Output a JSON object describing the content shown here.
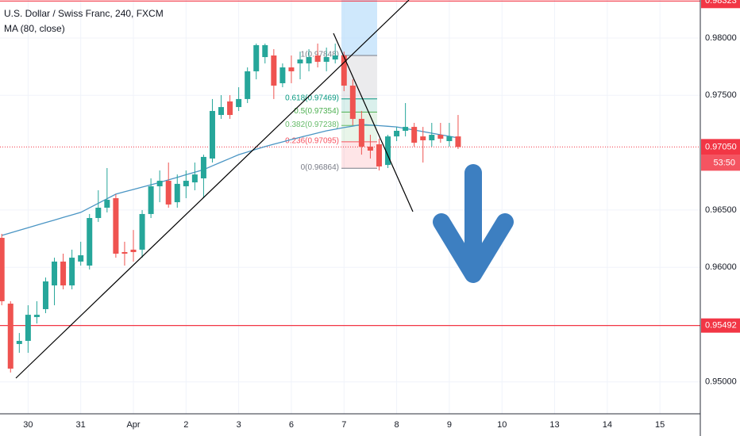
{
  "chart_data": {
    "type": "candlestick",
    "title": "U.S. Dollar / Swiss Franc, 240, FXCM",
    "categories": [
      null,
      null,
      null,
      "30",
      null,
      null,
      null,
      null,
      null,
      "31",
      null,
      null,
      null,
      null,
      null,
      "Apr",
      null,
      null,
      null,
      null,
      null,
      "2",
      null,
      null,
      null,
      null,
      null,
      "3",
      null,
      null,
      null,
      null,
      null,
      "6",
      null,
      null,
      null,
      null,
      null,
      "7",
      null,
      null,
      null,
      null,
      null,
      "8",
      null,
      null,
      null,
      null,
      null,
      "9",
      null,
      null,
      null,
      null,
      null,
      "10",
      null,
      null,
      null,
      null,
      null,
      "13",
      null,
      null,
      null,
      null,
      null,
      "14",
      null,
      null,
      null,
      null,
      null,
      "15",
      null,
      null,
      null
    ],
    "open": [
      0.96257,
      0.95683,
      0.95331,
      0.95358,
      0.95566,
      0.95635,
      0.95842,
      0.9605,
      0.95842,
      0.9605,
      0.96015,
      0.9643,
      0.9652,
      0.96603,
      0.96133,
      0.96154,
      0.96154,
      0.96465,
      0.96707,
      0.96755,
      0.96568,
      0.96707,
      0.96741,
      0.96776,
      0.96949,
      0.97329,
      0.97447,
      0.97398,
      0.97468,
      0.9771,
      0.97834,
      0.97848,
      0.97606,
      0.97744,
      0.97779,
      0.97779,
      0.97848,
      0.97793,
      0.97813,
      0.97848,
      0.97585,
      0.97295,
      0.97053,
      0.97073,
      0.96893,
      0.97142,
      0.97191,
      0.97225,
      0.97142,
      0.97108,
      0.97156,
      0.97101,
      0.97142,
      null,
      null,
      null,
      null,
      null,
      null,
      null,
      null,
      null,
      null,
      null,
      null,
      null,
      null,
      null,
      null,
      null,
      null,
      null,
      null,
      null,
      null,
      null,
      null,
      null,
      null
    ],
    "high": [
      0.96292,
      0.95704,
      0.95427,
      0.95669,
      0.95704,
      0.95911,
      0.96084,
      0.96119,
      0.96154,
      0.96223,
      0.96465,
      0.96672,
      0.96866,
      0.96638,
      0.96223,
      0.96326,
      0.96499,
      0.96776,
      0.96845,
      0.96914,
      0.9681,
      0.96845,
      0.96914,
      0.96983,
      0.97468,
      0.97502,
      0.97502,
      0.97571,
      0.97744,
      0.97952,
      0.97952,
      0.97903,
      0.97779,
      0.97848,
      0.97882,
      0.97903,
      0.97952,
      0.97917,
      0.97952,
      0.97882,
      0.9764,
      0.97364,
      0.97156,
      0.97122,
      0.97156,
      0.97225,
      0.97433,
      0.9726,
      0.97225,
      0.9726,
      0.9726,
      0.9726,
      0.97329,
      null,
      null,
      null,
      null,
      null,
      null,
      null,
      null,
      null,
      null,
      null,
      null,
      null,
      null,
      null,
      null,
      null,
      null,
      null,
      null,
      null,
      null,
      null,
      null,
      null,
      null
    ],
    "low": [
      0.95669,
      0.95082,
      0.95254,
      0.95254,
      0.9551,
      0.956,
      0.95669,
      0.95808,
      0.95808,
      0.96015,
      0.95981,
      0.96396,
      0.96479,
      0.96084,
      0.96015,
      0.9605,
      0.96084,
      0.9643,
      0.96568,
      0.9652,
      0.9652,
      0.96603,
      0.96672,
      0.96603,
      0.96914,
      0.97295,
      0.97295,
      0.97364,
      0.97433,
      0.9764,
      0.97779,
      0.97468,
      0.97571,
      0.97606,
      0.9764,
      0.9771,
      0.97744,
      0.9771,
      0.97779,
      0.97537,
      0.97239,
      0.96983,
      0.96949,
      0.96845,
      0.96866,
      0.97101,
      0.97142,
      0.97053,
      0.96914,
      0.97053,
      0.97087,
      0.97053,
      0.97032,
      null,
      null,
      null,
      null,
      null,
      null,
      null,
      null,
      null,
      null,
      null,
      null,
      null,
      null,
      null,
      null,
      null,
      null,
      null,
      null,
      null,
      null,
      null,
      null,
      null,
      null
    ],
    "close": [
      0.95704,
      0.95116,
      0.95358,
      0.95586,
      0.95586,
      0.95877,
      0.9605,
      0.95842,
      0.96084,
      0.96105,
      0.9643,
      0.9652,
      0.96589,
      0.96119,
      0.96119,
      0.96133,
      0.96465,
      0.96707,
      0.96755,
      0.96548,
      0.96728,
      0.96755,
      0.9681,
      0.96963,
      0.97364,
      0.97398,
      0.97329,
      0.97468,
      0.9771,
      0.97938,
      0.97938,
      0.97585,
      0.97744,
      0.9771,
      0.97813,
      0.97834,
      0.97793,
      0.97834,
      0.97848,
      0.97585,
      0.97295,
      0.97053,
      0.97018,
      0.9688,
      0.97142,
      0.97191,
      0.97225,
      0.97087,
      0.97108,
      0.97156,
      0.97122,
      0.97142,
      0.9705,
      null,
      null,
      null,
      null,
      null,
      null,
      null,
      null,
      null,
      null,
      null,
      null,
      null,
      null,
      null,
      null,
      null,
      null,
      null,
      null,
      null,
      null,
      null,
      null,
      null,
      null
    ],
    "colors": {
      "up": "#26a69a",
      "down": "#ef5350"
    },
    "ma": {
      "name": "MA (80, close)",
      "color": "#4a95c4",
      "values": [
        0.96278,
        0.96301,
        0.96323,
        0.96346,
        0.96368,
        0.9639,
        0.96412,
        0.96435,
        0.96457,
        0.96479,
        0.96519,
        0.96559,
        0.96598,
        0.96638,
        0.96659,
        0.96679,
        0.967,
        0.9672,
        0.96741,
        0.96763,
        0.96785,
        0.96808,
        0.9683,
        0.96852,
        0.96885,
        0.96918,
        0.9695,
        0.96983,
        0.97006,
        0.9703,
        0.97053,
        0.97074,
        0.97094,
        0.97115,
        0.97134,
        0.97153,
        0.97172,
        0.97191,
        0.97205,
        0.97219,
        0.97232,
        0.97246,
        0.97241,
        0.97236,
        0.9723,
        0.97225,
        0.97211,
        0.97198,
        0.97184,
        0.9717,
        0.97156,
        0.97143,
        0.97129,
        null,
        null,
        null,
        null,
        null,
        null,
        null,
        null,
        null,
        null,
        null,
        null,
        null,
        null,
        null,
        null,
        null,
        null,
        null,
        null,
        null,
        null,
        null,
        null,
        null,
        null
      ]
    },
    "ylim": [
      0.94722,
      0.98332
    ],
    "yticks": [
      {
        "value": 0.95,
        "label": "0.95000"
      },
      {
        "value": 0.96,
        "label": "0.96000"
      },
      {
        "value": 0.965,
        "label": "0.96500"
      },
      {
        "value": 0.975,
        "label": "0.97500"
      },
      {
        "value": 0.98,
        "label": "0.98000"
      }
    ],
    "grid": true,
    "hlines": [
      {
        "value": 0.98323,
        "color": "#f23645"
      },
      {
        "value": 0.95492,
        "color": "#f23645"
      }
    ],
    "last_price": {
      "value": 0.9705,
      "label": "0.97050",
      "color": "#f23645"
    },
    "countdown": "53:50",
    "fib_levels": [
      {
        "value": 0.97848,
        "label": "1(0.97848)",
        "color": "#787b86"
      },
      {
        "value": 0.97469,
        "label": "0.618(0.97469)",
        "color": "#089981"
      },
      {
        "value": 0.97354,
        "label": "0.5(0.97354)",
        "color": "#4caf50"
      },
      {
        "value": 0.97238,
        "label": "0.382(0.97238)",
        "color": "#66bb6a"
      },
      {
        "value": 0.97095,
        "label": "0.236(0.97095)",
        "color": "#f7525f"
      },
      {
        "value": 0.96864,
        "label": "0(0.96864)",
        "color": "#787b86"
      }
    ]
  }
}
